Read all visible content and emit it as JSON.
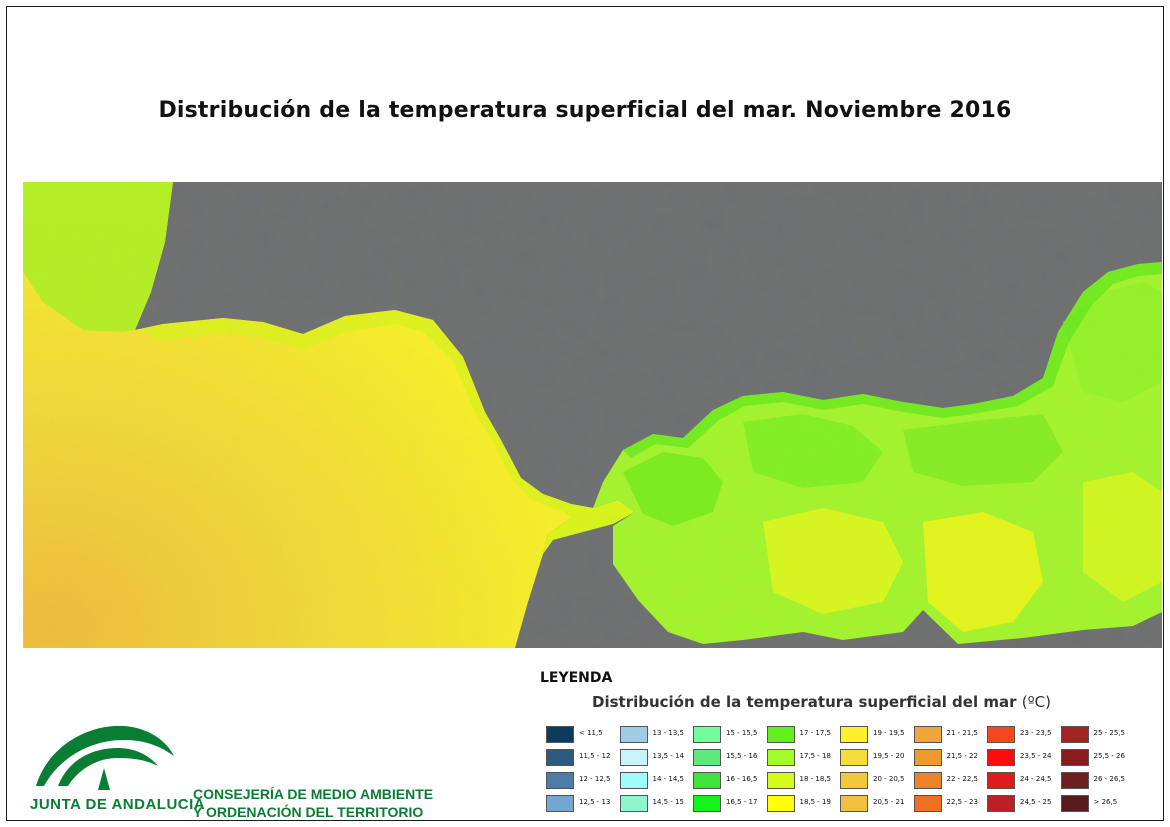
{
  "title": "Distribución de la temperatura superficial del mar. Noviembre 2016",
  "legend": {
    "heading": "LEYENDA",
    "subtitle": "Distribución de la temperatura superficial del mar",
    "unit": "(ºC)",
    "classes": [
      {
        "label": "< 11,5",
        "color": "#0e3a5c"
      },
      {
        "label": "11,5 - 12",
        "color": "#2c5a80"
      },
      {
        "label": "12 - 12,5",
        "color": "#4c7ba6"
      },
      {
        "label": "12,5 - 13",
        "color": "#74a6d3"
      },
      {
        "label": "13 - 13,5",
        "color": "#9fcbe4"
      },
      {
        "label": "13,5 - 14",
        "color": "#c5f4fb"
      },
      {
        "label": "14 - 14,5",
        "color": "#9ffcfd"
      },
      {
        "label": "14,5 - 15",
        "color": "#8ef6cf"
      },
      {
        "label": "15 - 15,5",
        "color": "#6ffd9e"
      },
      {
        "label": "15,5 - 16",
        "color": "#5ee97a"
      },
      {
        "label": "16 - 16,5",
        "color": "#3ee43c"
      },
      {
        "label": "16,5 - 17",
        "color": "#16f21b"
      },
      {
        "label": "17 - 17,5",
        "color": "#62f11a"
      },
      {
        "label": "17,5 - 18",
        "color": "#a4fb2a"
      },
      {
        "label": "18 - 18,5",
        "color": "#d6fb1a"
      },
      {
        "label": "18,5 - 19",
        "color": "#ffff0a"
      },
      {
        "label": "19 - 19,5",
        "color": "#fef028"
      },
      {
        "label": "19,5 - 20",
        "color": "#f6dc3c"
      },
      {
        "label": "20 - 20,5",
        "color": "#f3c939"
      },
      {
        "label": "20,5 - 21",
        "color": "#f0c03e"
      },
      {
        "label": "21 - 21,5",
        "color": "#eea63a"
      },
      {
        "label": "21,5 - 22",
        "color": "#ec9a30"
      },
      {
        "label": "22 - 22,5",
        "color": "#ee8426"
      },
      {
        "label": "22,5 - 23",
        "color": "#ef6f23"
      },
      {
        "label": "23 - 23,5",
        "color": "#f6471f"
      },
      {
        "label": "23,5 - 24",
        "color": "#fc0d0d"
      },
      {
        "label": "24 - 24,5",
        "color": "#df1c1c"
      },
      {
        "label": "24,5 - 25",
        "color": "#bb2025"
      },
      {
        "label": "25 - 25,5",
        "color": "#a42222"
      },
      {
        "label": "25,5 - 26",
        "color": "#8a1b1b"
      },
      {
        "label": "26 - 26,5",
        "color": "#6e1f1f"
      },
      {
        "label": "> 26,5",
        "color": "#5a1a1d"
      }
    ]
  },
  "map": {
    "land_color": "#6d6e72",
    "atlantic_color": "#f1dd3e",
    "atlantic_south_color": "#eec23e",
    "coastal_green_color": "#9df21c",
    "alboran_color": "#a6f62c",
    "alboran_dark_color": "#54e81a",
    "strait_color": "#d8f31c",
    "warm_patch_color": "#f9ef1c"
  },
  "branding": {
    "org_name": "JUNTA DE ANDALUCIA",
    "department_line1": "CONSEJERÍA DE MEDIO AMBIENTE",
    "department_line2": "Y ORDENACIÓN DEL TERRITORIO",
    "logo_color": "#0a7d34"
  }
}
